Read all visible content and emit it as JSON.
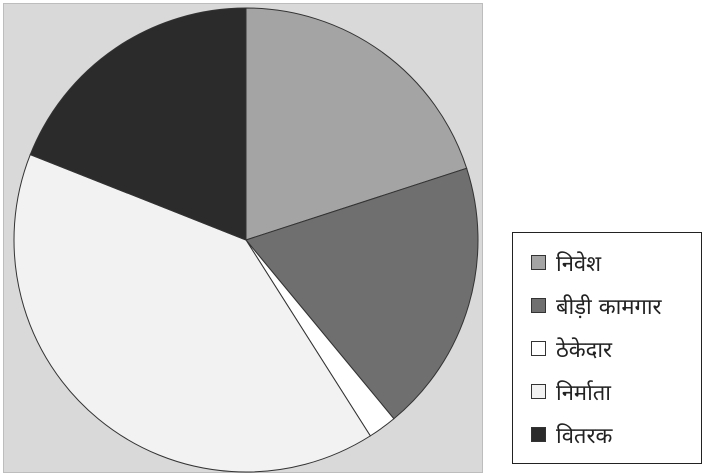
{
  "chart_data": {
    "type": "pie",
    "title": "",
    "categories": [
      "निवेश",
      "बीड़ी कामगार",
      "ठेकेदार",
      "निर्माता",
      "वितरक"
    ],
    "values": [
      20,
      19,
      2,
      40,
      19
    ],
    "colors": [
      "#a4a4a4",
      "#6f6f6f",
      "#ffffff",
      "#f2f2f2",
      "#2b2b2b"
    ],
    "start_angle_deg": 0,
    "direction": "clockwise",
    "legend": {
      "position": "right-bottom",
      "items": [
        {
          "label": "निवेश",
          "color": "#a4a4a4"
        },
        {
          "label": "बीड़ी कामगार",
          "color": "#6f6f6f"
        },
        {
          "label": "ठेकेदार",
          "color": "#ffffff"
        },
        {
          "label": "निर्माता",
          "color": "#f2f2f2"
        },
        {
          "label": "वितरक",
          "color": "#2b2b2b"
        }
      ]
    }
  }
}
